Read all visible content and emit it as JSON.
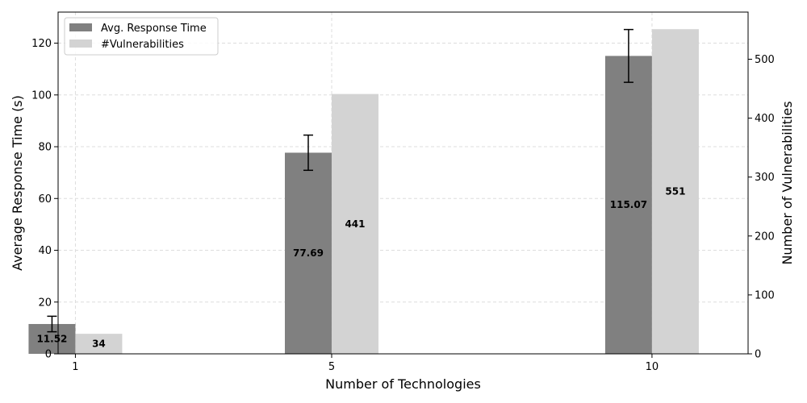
{
  "chart_data": {
    "type": "bar",
    "x": [
      1,
      5,
      10
    ],
    "xticks": [
      "1",
      "5",
      "10"
    ],
    "xlabel": "Number of Technologies",
    "ylabel_left": "Average Response Time (s)",
    "ylabel_right": "Number of Vulnerabilities",
    "ylim_left": [
      0,
      132
    ],
    "ylim_right": [
      0,
      580
    ],
    "yticks_left": [
      0,
      20,
      40,
      60,
      80,
      100,
      120
    ],
    "yticks_right": [
      0,
      100,
      200,
      300,
      400,
      500
    ],
    "grid": true,
    "legend_position": "top-left",
    "series": [
      {
        "name": "Avg. Response Time",
        "axis": "left",
        "color": "#808080",
        "values": [
          11.52,
          77.69,
          115.07
        ],
        "error": [
          3.0,
          6.8,
          10.2
        ],
        "labels": [
          "11.52",
          "77.69",
          "115.07"
        ]
      },
      {
        "name": "#Vulnerabilities",
        "axis": "right",
        "color": "#d3d3d3",
        "values": [
          34,
          441,
          551
        ],
        "labels": [
          "34",
          "441",
          "551"
        ]
      }
    ]
  }
}
